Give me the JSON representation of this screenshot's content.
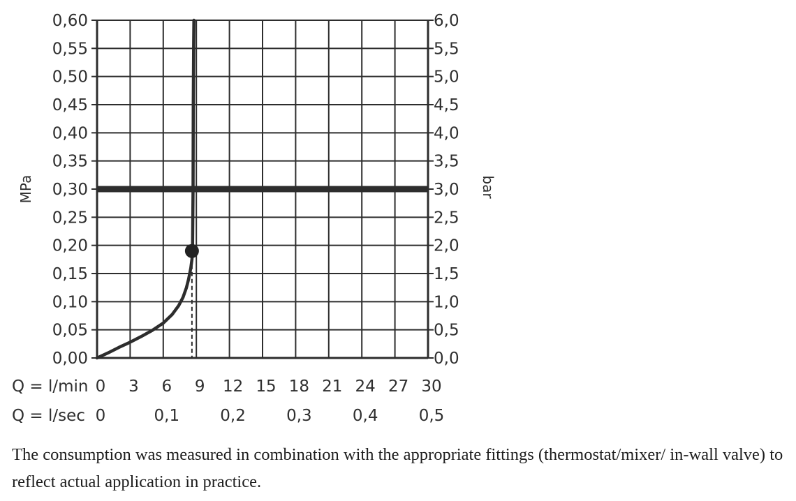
{
  "chart_data": {
    "type": "line",
    "left_axis": {
      "title": "MPa",
      "ticks": [
        "0,00",
        "0,05",
        "0,10",
        "0,15",
        "0,20",
        "0,25",
        "0,30",
        "0,35",
        "0,40",
        "0,45",
        "0,50",
        "0,55",
        "0,60"
      ],
      "range": [
        0,
        0.6
      ]
    },
    "right_axis": {
      "title": "bar",
      "ticks": [
        "0,0",
        "0,5",
        "1,0",
        "1,5",
        "2,0",
        "2,5",
        "3,0",
        "3,5",
        "4,0",
        "4,5",
        "5,0",
        "5,5",
        "6,0"
      ],
      "range": [
        0,
        6
      ]
    },
    "x_axis": {
      "range": [
        0,
        30
      ],
      "rows": [
        {
          "label": "Q = l/min",
          "ticks": [
            {
              "text": "0",
              "value": 0
            },
            {
              "text": "3",
              "value": 3
            },
            {
              "text": "6",
              "value": 6
            },
            {
              "text": "9",
              "value": 9
            },
            {
              "text": "12",
              "value": 12
            },
            {
              "text": "15",
              "value": 15
            },
            {
              "text": "18",
              "value": 18
            },
            {
              "text": "21",
              "value": 21
            },
            {
              "text": "24",
              "value": 24
            },
            {
              "text": "27",
              "value": 27
            },
            {
              "text": "30",
              "value": 30
            }
          ]
        },
        {
          "label": "Q = l/sec",
          "ticks": [
            {
              "text": "0",
              "value": 0
            },
            {
              "text": "0,1",
              "value": 6
            },
            {
              "text": "0,2",
              "value": 12
            },
            {
              "text": "0,3",
              "value": 18
            },
            {
              "text": "0,4",
              "value": 24
            },
            {
              "text": "0,5",
              "value": 30
            }
          ]
        }
      ]
    },
    "grid": true,
    "series": [
      {
        "x": [
          0,
          1,
          2,
          3,
          4,
          5,
          6,
          6.8,
          7.4,
          7.8,
          8.1,
          8.3,
          8.5,
          8.6,
          8.65,
          8.7,
          8.72,
          8.75,
          8.78
        ],
        "y": [
          0,
          0.009,
          0.019,
          0.028,
          0.038,
          0.049,
          0.062,
          0.077,
          0.093,
          0.108,
          0.125,
          0.14,
          0.16,
          0.175,
          0.19,
          0.3,
          0.45,
          0.55,
          0.6
        ]
      }
    ],
    "reference_line": {
      "y": 0.3
    },
    "marker": {
      "x": 8.6,
      "y": 0.19
    }
  },
  "caption": "The consumption was measured in combination with the appropriate fittings (thermostat/mixer/ in-wall valve) to reflect actual application in practice."
}
